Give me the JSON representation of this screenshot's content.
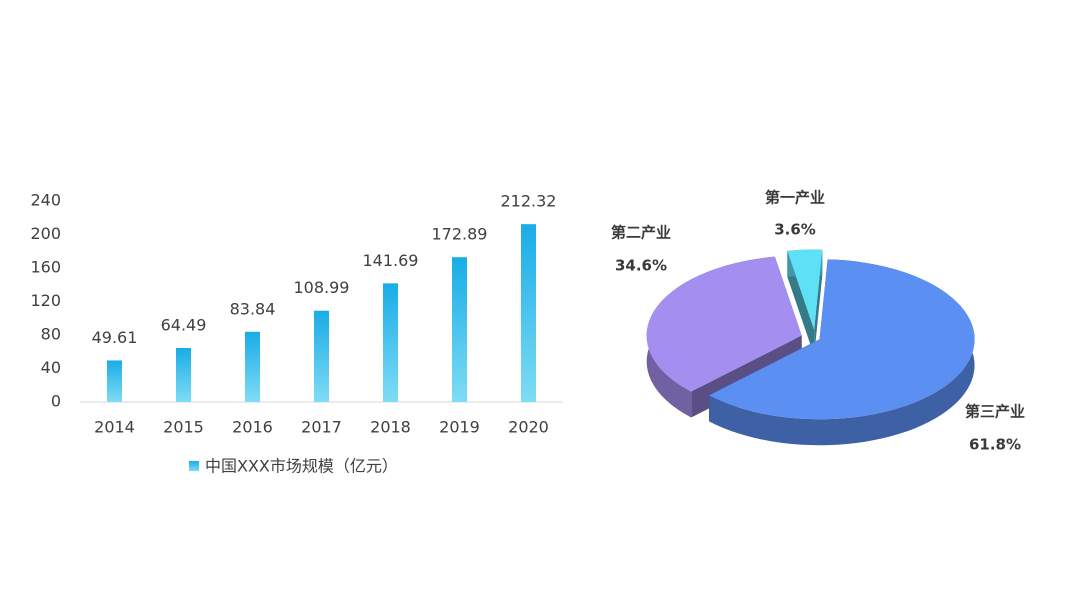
{
  "chart_data": [
    {
      "type": "bar",
      "categories": [
        "2014",
        "2015",
        "2016",
        "2017",
        "2018",
        "2019",
        "2020"
      ],
      "series": [
        {
          "name": "中国XXX市场规模（亿元）",
          "color": "#1aaee8",
          "values": [
            49.61,
            64.49,
            83.84,
            108.99,
            141.69,
            172.89,
            212.32
          ]
        }
      ],
      "ylim": [
        0,
        240
      ],
      "yticks": [
        0,
        40,
        80,
        120,
        160,
        200,
        240
      ],
      "grid": false,
      "legend": "bottom"
    },
    {
      "type": "pie",
      "categories": [
        "第一产业",
        "第二产业",
        "第三产业"
      ],
      "values": [
        3.6,
        34.6,
        61.8
      ],
      "value_labels": [
        "3.6%",
        "34.6%",
        "61.8%"
      ],
      "colors": [
        "#5ee0f6",
        "#a48ff0",
        "#5b8ff2"
      ]
    }
  ]
}
